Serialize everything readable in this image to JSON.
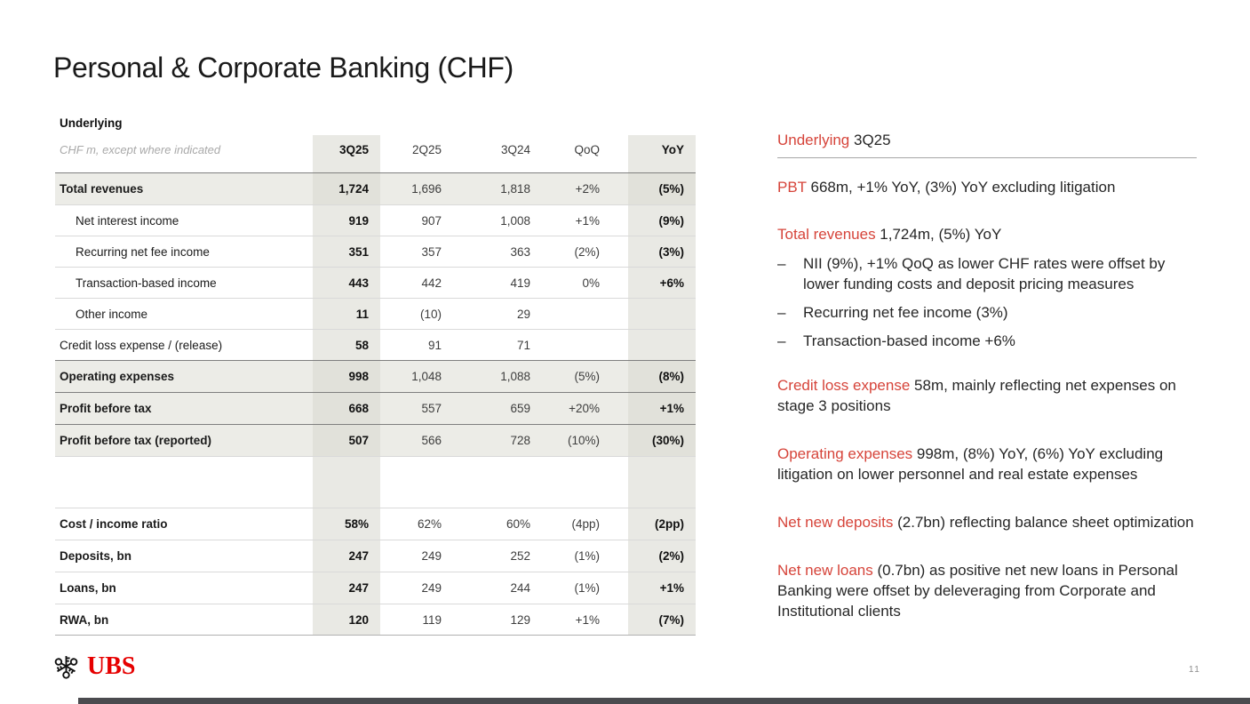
{
  "slide": {
    "title": "Personal & Corporate Banking (CHF)",
    "page_number": "11",
    "logo_text": "UBS"
  },
  "colors": {
    "accent_red": "#d6443a",
    "logo_red": "#e60000",
    "column_shade": "#e9e9e4",
    "band_shade": "#ecece7"
  },
  "table": {
    "section_label": "Underlying",
    "note": "CHF m, except where indicated",
    "columns": [
      "3Q25",
      "2Q25",
      "3Q24",
      "QoQ",
      "YoY"
    ],
    "rows": [
      {
        "label": "Total revenues",
        "style": "band",
        "indent": false,
        "values": [
          "1,724",
          "1,696",
          "1,818",
          "+2%",
          "(5%)"
        ]
      },
      {
        "label": "Net interest income",
        "style": "normal",
        "indent": true,
        "values": [
          "919",
          "907",
          "1,008",
          "+1%",
          "(9%)"
        ]
      },
      {
        "label": "Recurring net fee income",
        "style": "normal",
        "indent": true,
        "values": [
          "351",
          "357",
          "363",
          "(2%)",
          "(3%)"
        ]
      },
      {
        "label": "Transaction-based income",
        "style": "normal",
        "indent": true,
        "values": [
          "443",
          "442",
          "419",
          "0%",
          "+6%"
        ]
      },
      {
        "label": "Other income",
        "style": "normal",
        "indent": true,
        "values": [
          "11",
          "(10)",
          "29",
          "",
          ""
        ]
      },
      {
        "label": "Credit loss expense / (release)",
        "style": "normal",
        "indent": false,
        "values": [
          "58",
          "91",
          "71",
          "",
          ""
        ]
      },
      {
        "label": "Operating expenses",
        "style": "band",
        "indent": false,
        "values": [
          "998",
          "1,048",
          "1,088",
          "(5%)",
          "(8%)"
        ]
      },
      {
        "label": "Profit before tax",
        "style": "band",
        "indent": false,
        "values": [
          "668",
          "557",
          "659",
          "+20%",
          "+1%"
        ]
      },
      {
        "label": "Profit before tax (reported)",
        "style": "band",
        "indent": false,
        "values": [
          "507",
          "566",
          "728",
          "(10%)",
          "(30%)"
        ]
      },
      {
        "label": "",
        "style": "spacer",
        "indent": false,
        "values": [
          "",
          "",
          "",
          "",
          ""
        ]
      },
      {
        "label": "Cost / income ratio",
        "style": "ratio",
        "indent": false,
        "values": [
          "58%",
          "62%",
          "60%",
          "(4pp)",
          "(2pp)"
        ]
      },
      {
        "label": "Deposits, bn",
        "style": "ratio",
        "indent": false,
        "values": [
          "247",
          "249",
          "252",
          "(1%)",
          "(2%)"
        ]
      },
      {
        "label": "Loans, bn",
        "style": "ratio",
        "indent": false,
        "values": [
          "247",
          "249",
          "244",
          "(1%)",
          "+1%"
        ]
      },
      {
        "label": "RWA, bn",
        "style": "ratio",
        "indent": false,
        "values": [
          "120",
          "119",
          "129",
          "+1%",
          "(7%)"
        ]
      }
    ]
  },
  "commentary": {
    "heading": {
      "lead": "Underlying",
      "rest": "3Q25"
    },
    "blocks": [
      {
        "lead": "PBT",
        "text": "668m, +1% YoY, (3%) YoY excluding litigation",
        "bullets": []
      },
      {
        "lead": "Total revenues",
        "text": "1,724m, (5%) YoY",
        "bullets": [
          "NII (9%), +1% QoQ as lower CHF rates were offset by lower funding costs and deposit pricing measures",
          "Recurring net fee income (3%)",
          "Transaction-based income +6%"
        ]
      },
      {
        "lead": "Credit loss expense",
        "text": "58m, mainly reflecting net expenses on stage 3 positions",
        "bullets": []
      },
      {
        "lead": "Operating expenses",
        "text": "998m, (8%) YoY, (6%) YoY excluding litigation on lower personnel and real estate expenses",
        "bullets": []
      },
      {
        "lead": "Net new deposits",
        "text": "(2.7bn) reflecting balance sheet optimization",
        "bullets": []
      },
      {
        "lead": "Net new loans",
        "text": "(0.7bn) as positive net new loans in Personal Banking were offset by deleveraging from Corporate and Institutional clients",
        "bullets": []
      }
    ]
  }
}
